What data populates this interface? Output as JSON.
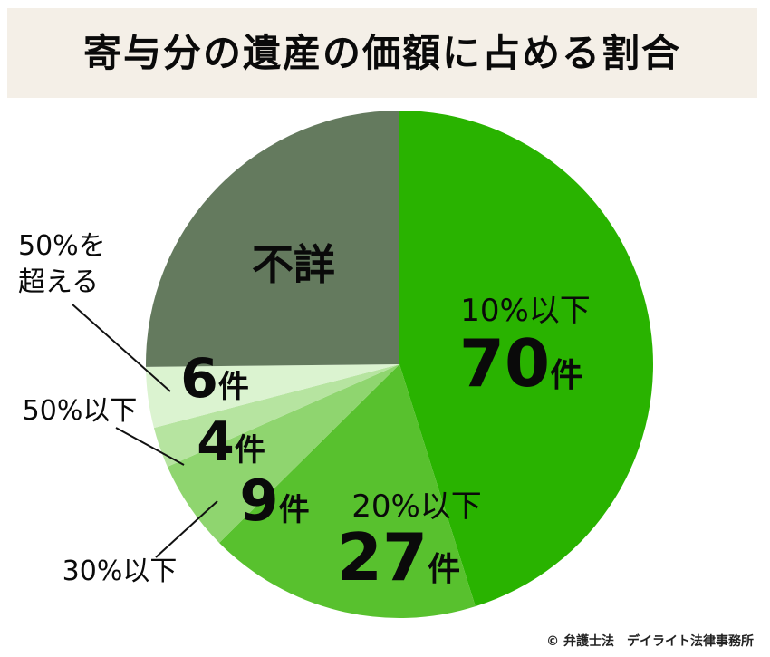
{
  "title": "寄与分の遺産の価額に占める割合",
  "credit": "© 弁護士法　デイライト法律事務所",
  "chart_data": {
    "type": "pie",
    "title": "寄与分の遺産の価額に占める割合",
    "unit": "件",
    "slices": [
      {
        "label": "10%以下",
        "value": 70,
        "value_text": "70",
        "color": "#29b300"
      },
      {
        "label": "20%以下",
        "value": 27,
        "value_text": "27",
        "color": "#58c12e"
      },
      {
        "label": "30%以下",
        "value": 9,
        "value_text": "9",
        "color": "#8fd56f"
      },
      {
        "label": "50%以下",
        "value": 4,
        "value_text": "4",
        "color": "#b6e4a0"
      },
      {
        "label": "50%を超える",
        "value": 6,
        "value_text": "6",
        "color": "#dbf3d0"
      },
      {
        "label": "不詳",
        "value": 39,
        "value_text": "不詳",
        "color": "#647a5e"
      }
    ]
  }
}
